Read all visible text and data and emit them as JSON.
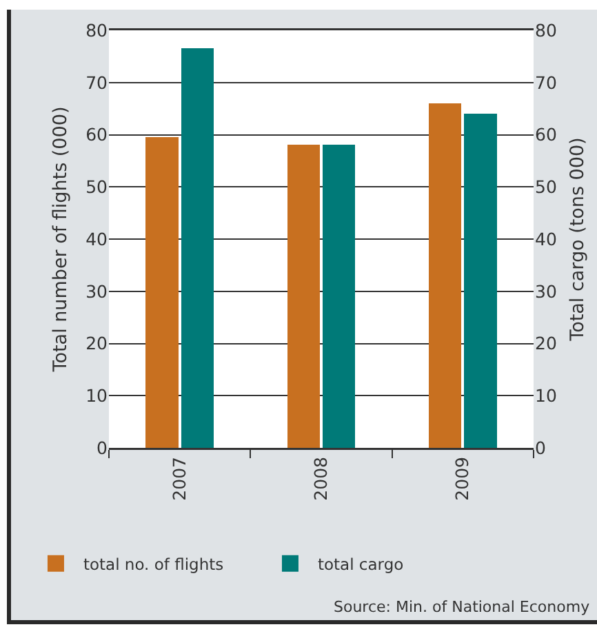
{
  "chart_data": {
    "type": "bar",
    "categories": [
      "2007",
      "2008",
      "2009"
    ],
    "series": [
      {
        "name": "total no. of flights",
        "color": "#c87020",
        "values": [
          59.5,
          58.1,
          66.0
        ]
      },
      {
        "name": "total cargo",
        "color": "#007a78",
        "axis": "y2",
        "values": [
          76.6,
          58.1,
          64.0
        ]
      }
    ],
    "ylabel": "Total number of flights (000)",
    "y2label": "Total cargo (tons 000)",
    "ylim": [
      0,
      80
    ],
    "yticks": [
      0,
      10,
      20,
      30,
      40,
      50,
      60,
      70,
      80
    ],
    "y2lim": [
      0,
      80
    ],
    "y2ticks": [
      0,
      10,
      20,
      30,
      40,
      50,
      60,
      70,
      80
    ],
    "grid": "y",
    "legend": "bottom left",
    "annotations": [
      "Source: Min. of National Economy"
    ]
  }
}
